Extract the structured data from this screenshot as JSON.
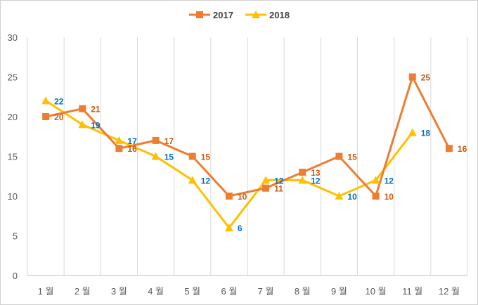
{
  "chart_data": {
    "type": "line",
    "categories": [
      "1 월",
      "2 월",
      "3 월",
      "4 월",
      "5 월",
      "6 월",
      "7 월",
      "8 월",
      "9 월",
      "10 월",
      "11 월",
      "12 월"
    ],
    "series": [
      {
        "name": "2017",
        "values": [
          20,
          21,
          16,
          17,
          15,
          10,
          11,
          13,
          15,
          10,
          25,
          16
        ],
        "color": "#ED7D31",
        "label_color": "#C55A11",
        "marker": "square"
      },
      {
        "name": "2018",
        "values": [
          22,
          19,
          17,
          15,
          12,
          6,
          12,
          12,
          10,
          12,
          18,
          null
        ],
        "color": "#FFC000",
        "label_color": "#0070C0",
        "marker": "triangle"
      }
    ],
    "ylim": [
      0,
      30
    ],
    "yticks": [
      0,
      5,
      10,
      15,
      20,
      25,
      30
    ],
    "title": "",
    "xlabel": "",
    "ylabel": "",
    "grid": "vertical",
    "legend": "top-center"
  }
}
